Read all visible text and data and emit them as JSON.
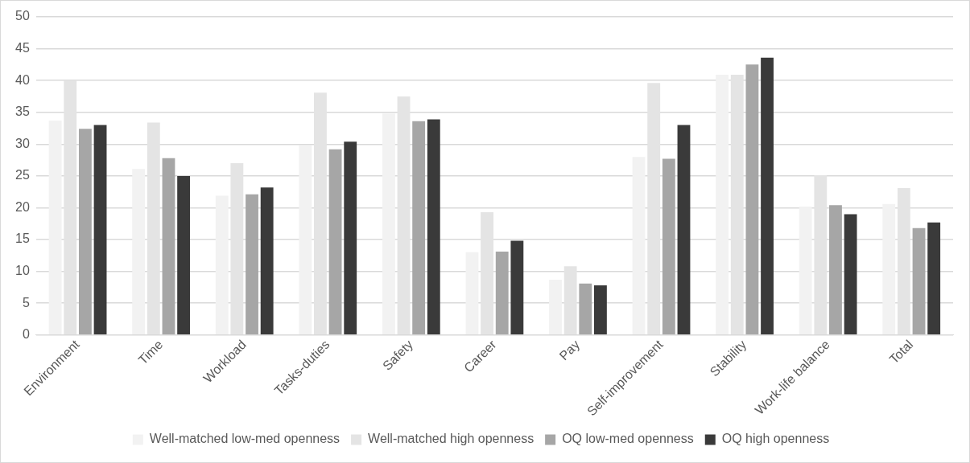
{
  "chart_data": {
    "type": "bar",
    "categories": [
      "Environment",
      "Time",
      "Workload",
      "Tasks-duties",
      "Safety",
      "Career",
      "Pay",
      "Self-improvement",
      "Stability",
      "Work-life balance",
      "Total"
    ],
    "series": [
      {
        "name": "Well-matched low-med openness",
        "color": "#f2f2f2",
        "values": [
          33.7,
          26.1,
          21.9,
          29.8,
          34.8,
          13,
          8.7,
          28,
          40.9,
          20.2,
          20.6
        ]
      },
      {
        "name": "Well-matched high openness",
        "color": "#e4e4e4",
        "values": [
          40,
          33.4,
          27,
          38.1,
          37.5,
          19.3,
          10.8,
          39.6,
          40.9,
          25.1,
          23.1
        ]
      },
      {
        "name": "OQ low-med openness",
        "color": "#a6a6a6",
        "values": [
          32.4,
          27.8,
          22.1,
          29.2,
          33.6,
          13.1,
          8.1,
          27.7,
          42.5,
          20.4,
          16.8
        ]
      },
      {
        "name": "OQ high openness",
        "color": "#3a3a3a",
        "values": [
          33,
          25,
          23.2,
          30.4,
          33.9,
          14.8,
          7.8,
          33,
          43.6,
          19,
          17.7
        ]
      }
    ],
    "ylim": [
      0,
      50
    ],
    "yticks": [
      0,
      5,
      10,
      15,
      20,
      25,
      30,
      35,
      40,
      45,
      50
    ],
    "grid": "y",
    "legend": "bottom"
  }
}
